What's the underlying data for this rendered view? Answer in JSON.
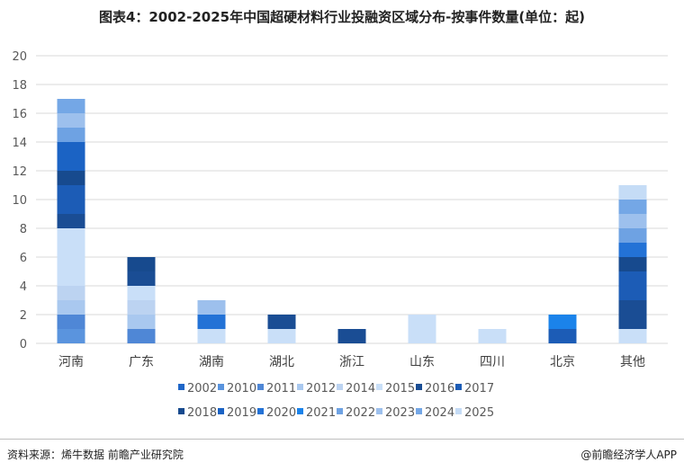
{
  "title": "图表4：2002-2025年中国超硬材料行业投融资区域分布-按事件数量(单位：起)",
  "source": "资料来源：烯牛数据 前瞻产业研究院",
  "credit": "@前瞻经济学人APP",
  "chart_data": {
    "type": "bar",
    "stacked": true,
    "categories": [
      "河南",
      "广东",
      "湖南",
      "湖北",
      "浙江",
      "山东",
      "四川",
      "北京",
      "其他"
    ],
    "ylim": [
      0,
      20
    ],
    "yticks": [
      0,
      2,
      4,
      6,
      8,
      10,
      12,
      14,
      16,
      18,
      20
    ],
    "grid": true,
    "legend_position": "bottom",
    "series": [
      {
        "name": "2002",
        "color": "#1f66c8",
        "values": [
          0,
          0,
          0,
          0,
          0,
          0,
          0,
          0,
          0
        ]
      },
      {
        "name": "2010",
        "color": "#5a94de",
        "values": [
          1,
          0,
          0,
          0,
          0,
          0,
          0,
          0,
          0
        ]
      },
      {
        "name": "2011",
        "color": "#4f87d6",
        "values": [
          1,
          1,
          0,
          0,
          0,
          0,
          0,
          0,
          0
        ]
      },
      {
        "name": "2012",
        "color": "#a9c8ef",
        "values": [
          1,
          1,
          0,
          0,
          0,
          0,
          0,
          0,
          0
        ]
      },
      {
        "name": "2014",
        "color": "#bcd3f1",
        "values": [
          1,
          1,
          0,
          0,
          0,
          0,
          0,
          0,
          0
        ]
      },
      {
        "name": "2015",
        "color": "#c9dff8",
        "values": [
          4,
          1,
          1,
          1,
          0,
          2,
          1,
          0,
          1
        ]
      },
      {
        "name": "2016",
        "color": "#1a4d94",
        "values": [
          1,
          1,
          0,
          1,
          1,
          0,
          0,
          0,
          2
        ]
      },
      {
        "name": "2017",
        "color": "#1c5cb6",
        "values": [
          2,
          0,
          0,
          0,
          0,
          0,
          0,
          1,
          2
        ]
      },
      {
        "name": "2018",
        "color": "#174a8e",
        "values": [
          1,
          1,
          0,
          0,
          0,
          0,
          0,
          0,
          1
        ]
      },
      {
        "name": "2019",
        "color": "#1b63c4",
        "values": [
          2,
          0,
          0,
          0,
          0,
          0,
          0,
          0,
          0
        ]
      },
      {
        "name": "2020",
        "color": "#2372d6",
        "values": [
          0,
          0,
          1,
          0,
          0,
          0,
          0,
          0,
          1
        ]
      },
      {
        "name": "2021",
        "color": "#1b83ea",
        "values": [
          0,
          0,
          0,
          0,
          0,
          0,
          0,
          1,
          0
        ]
      },
      {
        "name": "2022",
        "color": "#6ea2e3",
        "values": [
          1,
          0,
          0,
          0,
          0,
          0,
          0,
          0,
          1
        ]
      },
      {
        "name": "2023",
        "color": "#9dc0ed",
        "values": [
          1,
          0,
          1,
          0,
          0,
          0,
          0,
          0,
          1
        ]
      },
      {
        "name": "2024",
        "color": "#74a7e6",
        "values": [
          1,
          0,
          0,
          0,
          0,
          0,
          0,
          0,
          1
        ]
      },
      {
        "name": "2025",
        "color": "#c5dcf6",
        "values": [
          0,
          0,
          0,
          0,
          0,
          0,
          0,
          0,
          1
        ]
      }
    ]
  }
}
